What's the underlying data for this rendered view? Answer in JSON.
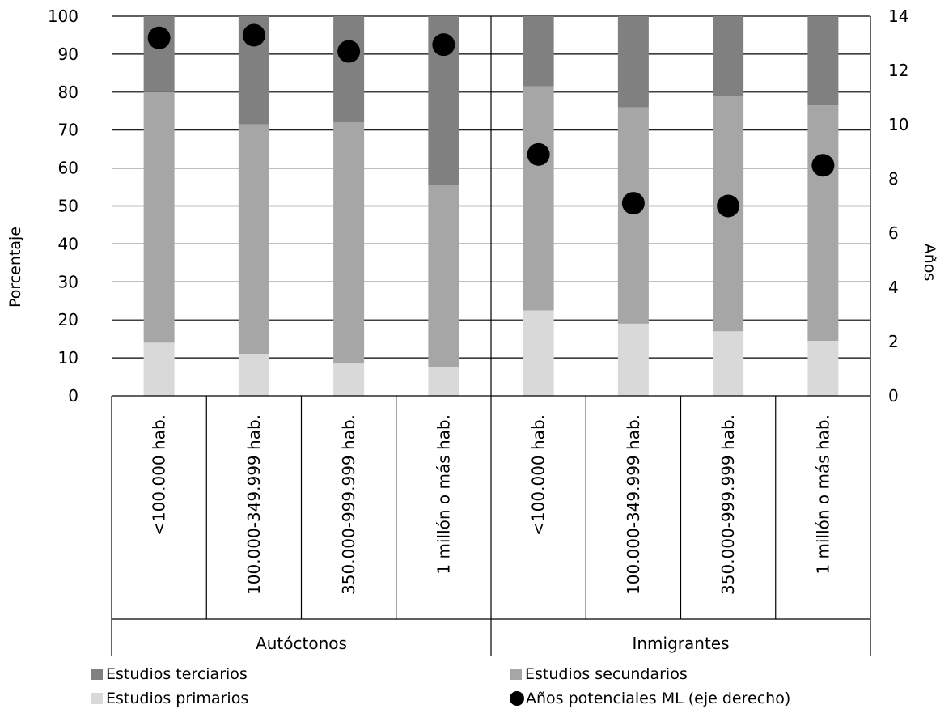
{
  "chart_data": {
    "type": "bar",
    "stacked": true,
    "groups": [
      {
        "name": "Autóctonos",
        "categories": [
          "<100.000 hab.",
          "100.000-349.999 hab.",
          "350.000-999.999 hab.",
          "1 millón o más hab."
        ]
      },
      {
        "name": "Inmigrantes",
        "categories": [
          "<100.000 hab.",
          "100.000-349.999 hab.",
          "350.000-999.999 hab.",
          "1 millón o más hab."
        ]
      }
    ],
    "series": [
      {
        "name": "Estudios primarios",
        "color": "#d9d9d9",
        "values": [
          14,
          11,
          8.5,
          7.5,
          22.5,
          19,
          17,
          14.5
        ]
      },
      {
        "name": "Estudios secundarios",
        "color": "#a6a6a6",
        "values": [
          66,
          60.5,
          63.5,
          48,
          59,
          57,
          62,
          62
        ]
      },
      {
        "name": "Estudios terciarios",
        "color": "#808080",
        "values": [
          20,
          28.5,
          28,
          44.5,
          18.5,
          24,
          21,
          23.5
        ]
      }
    ],
    "line_series": {
      "name": "Años potenciales ML (eje derecho)",
      "axis": "right",
      "color": "#000000",
      "values": [
        13.2,
        13.3,
        12.7,
        12.95,
        8.9,
        7.1,
        7.0,
        8.5
      ]
    },
    "ylabel": "Porcentaje",
    "ylabel_right": "Años",
    "ylim": [
      0,
      100
    ],
    "ylim_right": [
      0,
      14
    ],
    "yticks": [
      "0",
      "10",
      "20",
      "30",
      "40",
      "50",
      "60",
      "70",
      "80",
      "90",
      "100"
    ],
    "yticks_right": [
      "0",
      "2",
      "4",
      "6",
      "8",
      "10",
      "12",
      "14"
    ],
    "grid": true,
    "legend_position": "bottom"
  },
  "legend": {
    "items": [
      {
        "label": "Estudios terciarios",
        "color": "#808080",
        "marker": "square"
      },
      {
        "label": "Estudios secundarios",
        "color": "#a6a6a6",
        "marker": "square"
      },
      {
        "label": "Estudios primarios",
        "color": "#d9d9d9",
        "marker": "square"
      },
      {
        "label": "Años potenciales ML (eje derecho)",
        "color": "#000000",
        "marker": "circle"
      }
    ]
  }
}
